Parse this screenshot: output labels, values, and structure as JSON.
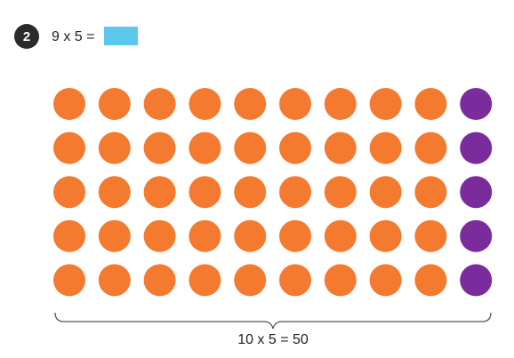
{
  "question": {
    "number": "2",
    "equation": "9 x 5 ="
  },
  "diagram": {
    "caption": "10 x 5 = 50"
  }
}
